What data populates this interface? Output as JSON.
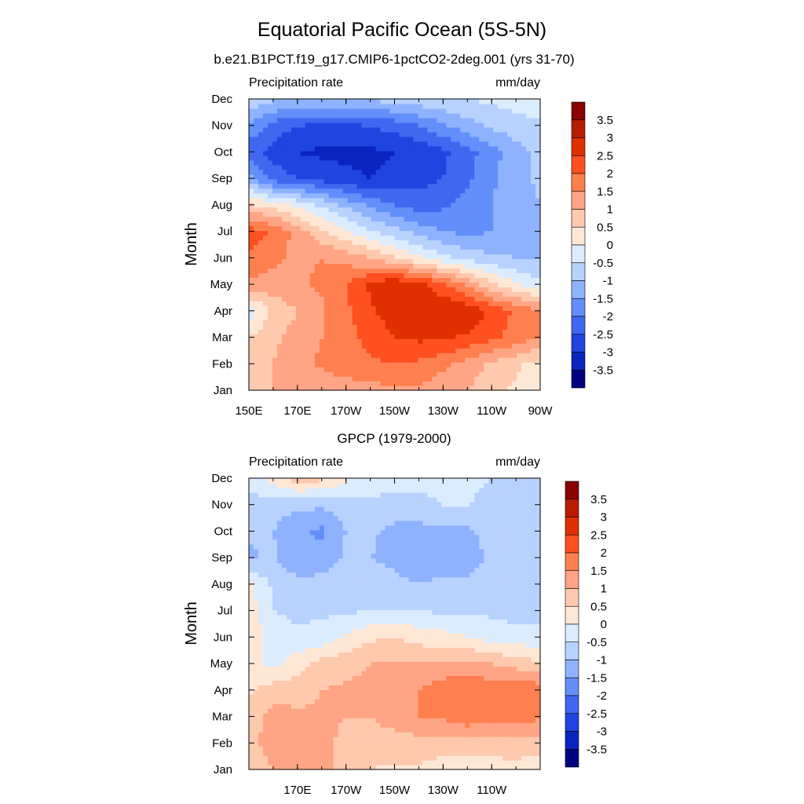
{
  "title": "Equatorial Pacific Ocean (5S-5N)",
  "colorbar": {
    "labels": [
      "3.5",
      "3",
      "2.5",
      "2",
      "1.5",
      "1",
      "0.5",
      "0",
      "-0.5",
      "-1",
      "-1.5",
      "-2",
      "-2.5",
      "-3",
      "-3.5"
    ],
    "colors": [
      "#8b0000",
      "#b81c00",
      "#e03000",
      "#ff5020",
      "#ff7f4f",
      "#ffa585",
      "#ffc9ae",
      "#ffe7d6",
      "#dcecff",
      "#b8d2ff",
      "#8fb2ff",
      "#638ffb",
      "#3f68f0",
      "#1f44e0",
      "#0a24c0",
      "#000080"
    ]
  },
  "chart_data": [
    {
      "type": "heatmap",
      "title": "b.e21.B1PCT.f19_g17.CMIP6-1pctCO2-2deg.001 (yrs 31-70)",
      "left_label": "Precipitation rate",
      "right_label": "mm/day",
      "ylabel": "Month",
      "yticks": [
        "Jan",
        "Feb",
        "Mar",
        "Apr",
        "May",
        "Jun",
        "Jul",
        "Aug",
        "Sep",
        "Oct",
        "Nov",
        "Dec"
      ],
      "xticks": [
        "150E",
        "170E",
        "170W",
        "150W",
        "130W",
        "110W",
        "90W"
      ],
      "x_range": [
        150,
        270
      ],
      "levels": [
        -3.5,
        -3,
        -2.5,
        -2,
        -1.5,
        -1,
        -0.5,
        0,
        0.5,
        1,
        1.5,
        2,
        2.5,
        3,
        3.5
      ],
      "grid_lon": [
        150,
        160,
        170,
        180,
        190,
        200,
        210,
        220,
        230,
        240,
        250,
        260,
        270
      ],
      "values": [
        [
          0.8,
          1.0,
          1.1,
          1.1,
          1.2,
          1.3,
          1.4,
          1.4,
          1.2,
          1.0,
          0.7,
          0.4,
          0.2
        ],
        [
          0.7,
          1.0,
          1.3,
          1.6,
          1.8,
          1.9,
          2.0,
          1.9,
          1.6,
          1.3,
          0.9,
          0.6,
          0.3
        ],
        [
          0.5,
          0.9,
          1.2,
          1.5,
          1.8,
          2.2,
          2.5,
          2.6,
          2.6,
          2.4,
          2.1,
          1.8,
          1.5
        ],
        [
          -0.3,
          0.6,
          1.0,
          1.4,
          1.9,
          2.4,
          2.8,
          3.0,
          3.0,
          2.9,
          2.4,
          1.9,
          1.6
        ],
        [
          1.4,
          1.3,
          1.4,
          1.6,
          2.0,
          2.6,
          3.0,
          2.7,
          2.1,
          1.4,
          0.6,
          0.1,
          -0.4
        ],
        [
          1.9,
          1.6,
          1.4,
          1.5,
          1.3,
          1.0,
          0.6,
          0.1,
          -0.3,
          -0.7,
          -0.9,
          -1.0,
          -1.0
        ],
        [
          2.3,
          1.9,
          1.3,
          0.6,
          0.1,
          -0.4,
          -0.8,
          -1.2,
          -1.5,
          -1.6,
          -1.5,
          -1.3,
          -1.2
        ],
        [
          0.6,
          0.3,
          -0.1,
          -0.6,
          -1.1,
          -1.6,
          -2.0,
          -2.2,
          -2.1,
          -1.8,
          -1.5,
          -1.2,
          -1.0
        ],
        [
          -1.3,
          -2.2,
          -2.5,
          -2.7,
          -2.9,
          -3.0,
          -2.9,
          -2.7,
          -2.5,
          -2.1,
          -1.6,
          -1.2,
          -0.9
        ],
        [
          -2.3,
          -2.7,
          -3.0,
          -3.1,
          -3.1,
          -3.1,
          -3.0,
          -2.9,
          -2.6,
          -2.2,
          -1.7,
          -1.2,
          -0.9
        ],
        [
          -1.6,
          -2.2,
          -2.5,
          -2.6,
          -2.6,
          -2.5,
          -2.3,
          -2.0,
          -1.6,
          -1.2,
          -0.9,
          -0.7,
          -0.6
        ],
        [
          -0.6,
          -0.9,
          -1.0,
          -1.0,
          -1.0,
          -0.9,
          -0.8,
          -0.7,
          -0.6,
          -0.5,
          -0.4,
          -0.3,
          -0.2
        ]
      ]
    },
    {
      "type": "heatmap",
      "title": "GPCP (1979-2000)",
      "left_label": "Precipitation rate",
      "right_label": "mm/day",
      "ylabel": "Month",
      "yticks": [
        "Jan",
        "Feb",
        "Mar",
        "Apr",
        "May",
        "Jun",
        "Jul",
        "Aug",
        "Sep",
        "Oct",
        "Nov",
        "Dec"
      ],
      "xticks": [
        "170E",
        "170W",
        "150W",
        "130W",
        "110W"
      ],
      "x_range": [
        150,
        270
      ],
      "levels": [
        -3.5,
        -3,
        -2.5,
        -2,
        -1.5,
        -1,
        -0.5,
        0,
        0.5,
        1,
        1.5,
        2,
        2.5,
        3,
        3.5
      ],
      "grid_lon": [
        150,
        160,
        170,
        180,
        190,
        200,
        210,
        220,
        230,
        240,
        250,
        260,
        270
      ],
      "values": [
        [
          0.6,
          1.0,
          1.5,
          1.2,
          0.8,
          0.5,
          0.4,
          0.4,
          0.3,
          0.3,
          0.3,
          0.3,
          0.2
        ],
        [
          0.8,
          1.3,
          1.4,
          1.1,
          0.9,
          0.8,
          0.8,
          0.8,
          0.7,
          0.7,
          0.7,
          0.8,
          0.7
        ],
        [
          0.7,
          1.2,
          1.1,
          1.1,
          1.0,
          1.0,
          1.2,
          1.5,
          1.6,
          1.9,
          1.7,
          1.8,
          1.6
        ],
        [
          0.4,
          0.8,
          0.8,
          1.0,
          1.1,
          1.2,
          1.4,
          1.5,
          1.8,
          2.0,
          1.8,
          2.0,
          1.8
        ],
        [
          0.3,
          -0.2,
          0.3,
          0.7,
          0.8,
          1.0,
          1.1,
          1.0,
          1.1,
          1.2,
          1.0,
          0.8,
          0.6
        ],
        [
          0.4,
          -0.3,
          -0.4,
          -0.3,
          0.1,
          0.4,
          0.5,
          0.3,
          0.2,
          0.0,
          -0.2,
          -0.3,
          -0.3
        ],
        [
          0.3,
          -0.5,
          -0.6,
          -0.6,
          -0.6,
          -0.5,
          -0.5,
          -0.5,
          -0.6,
          -0.6,
          -0.6,
          -0.7,
          -0.7
        ],
        [
          0.1,
          -0.6,
          -0.8,
          -0.8,
          -0.7,
          -0.8,
          -0.9,
          -1.0,
          -0.9,
          -0.9,
          -0.8,
          -0.8,
          -0.8
        ],
        [
          -1.1,
          -0.9,
          -1.5,
          -1.3,
          -0.9,
          -1.0,
          -1.1,
          -1.2,
          -1.2,
          -1.2,
          -0.9,
          -1.0,
          -1.0
        ],
        [
          -0.9,
          -1.0,
          -1.4,
          -1.6,
          -1.0,
          -0.9,
          -1.2,
          -1.2,
          -1.1,
          -1.1,
          -0.8,
          -0.9,
          -1.0
        ],
        [
          -0.7,
          -0.8,
          -0.9,
          -0.9,
          -0.7,
          -0.6,
          -0.6,
          -0.6,
          -0.5,
          -0.5,
          -0.6,
          -0.7,
          -0.7
        ],
        [
          -0.3,
          0.2,
          0.8,
          0.6,
          0.1,
          -0.3,
          -0.4,
          -0.4,
          -0.4,
          -0.4,
          -0.5,
          -0.5,
          -0.5
        ]
      ]
    }
  ]
}
